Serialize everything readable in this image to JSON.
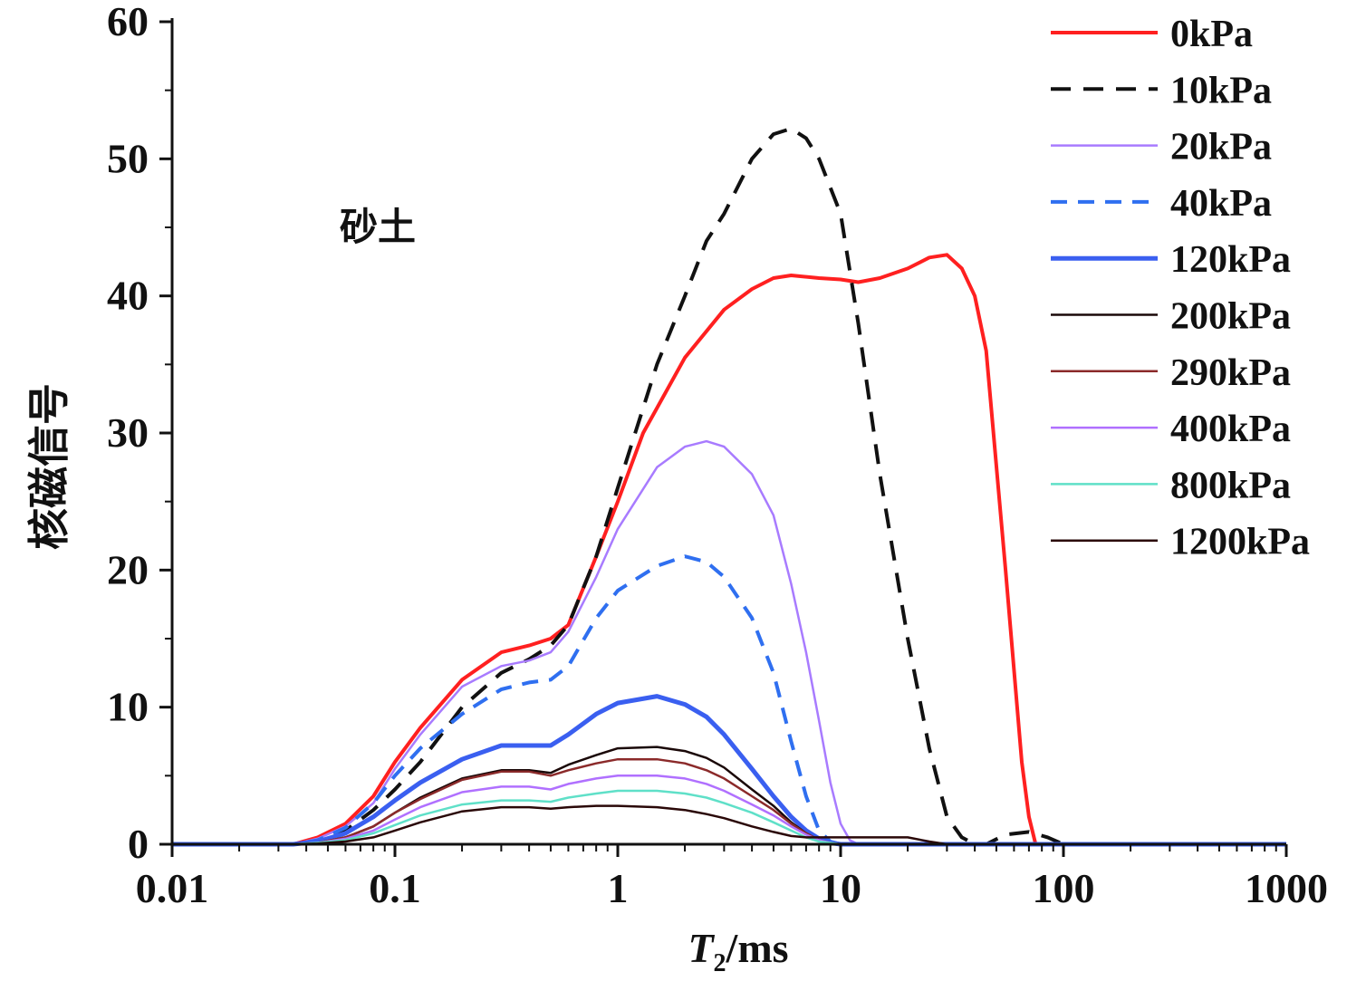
{
  "chart_data": {
    "type": "line",
    "xscale": "log",
    "xlabel_main": "T",
    "xlabel_sub": "2",
    "xlabel_unit": "/ms",
    "ylabel": "核磁信号",
    "annotation": "砂土",
    "xlim": [
      0.01,
      1000
    ],
    "ylim": [
      0,
      60
    ],
    "xticks": [
      0.01,
      0.1,
      1,
      10,
      100,
      1000
    ],
    "xtick_labels": [
      "0.01",
      "0.1",
      "1",
      "10",
      "100",
      "1000"
    ],
    "yticks": [
      0,
      10,
      20,
      30,
      40,
      50,
      60
    ],
    "ytick_labels": [
      "0",
      "10",
      "20",
      "30",
      "40",
      "50",
      "60"
    ],
    "grid": false,
    "legend_position": "top-right",
    "series": [
      {
        "name": "0kPa",
        "color": "#ff2020",
        "dash": "solid",
        "width": 4,
        "x": [
          0.01,
          0.035,
          0.045,
          0.06,
          0.08,
          0.1,
          0.13,
          0.2,
          0.3,
          0.4,
          0.5,
          0.6,
          0.8,
          1,
          1.3,
          2,
          3,
          4,
          5,
          6,
          8,
          10,
          12,
          15,
          20,
          25,
          30,
          35,
          40,
          45,
          55,
          65,
          70,
          75,
          80,
          1000
        ],
        "y": [
          0,
          0,
          0.5,
          1.5,
          3.5,
          6,
          8.5,
          12,
          14,
          14.5,
          15,
          16,
          21,
          25,
          30,
          35.5,
          39,
          40.5,
          41.3,
          41.5,
          41.3,
          41.2,
          41,
          41.3,
          42,
          42.8,
          43,
          42,
          40,
          36,
          20,
          6,
          2,
          0,
          0,
          0
        ]
      },
      {
        "name": "10kPa",
        "color": "#111111",
        "dash": "22,14",
        "width": 4,
        "x": [
          0.01,
          0.035,
          0.045,
          0.06,
          0.08,
          0.1,
          0.13,
          0.2,
          0.3,
          0.4,
          0.5,
          0.6,
          0.8,
          1,
          1.5,
          2,
          2.5,
          3,
          4,
          5,
          6,
          7,
          8,
          10,
          12,
          15,
          20,
          25,
          30,
          35,
          40,
          45,
          55,
          70,
          85,
          100,
          1000
        ],
        "y": [
          0,
          0,
          0.3,
          1,
          2.5,
          4,
          6,
          10,
          12.5,
          13.5,
          14.5,
          16,
          21,
          26,
          35,
          40,
          44,
          46,
          50,
          51.8,
          52.2,
          51.5,
          50,
          46,
          38,
          27,
          15,
          7,
          2,
          0.5,
          0,
          0,
          0.7,
          0.9,
          0.5,
          0,
          0
        ]
      },
      {
        "name": "20kPa",
        "color": "#a87bff",
        "dash": "solid",
        "width": 2.5,
        "x": [
          0.01,
          0.035,
          0.045,
          0.06,
          0.08,
          0.1,
          0.13,
          0.2,
          0.3,
          0.4,
          0.5,
          0.6,
          0.8,
          1,
          1.5,
          2,
          2.5,
          3,
          4,
          5,
          6,
          7,
          8,
          9,
          10,
          11,
          12,
          1000
        ],
        "y": [
          0,
          0,
          0.4,
          1.3,
          3,
          5.5,
          8,
          11.5,
          13,
          13.4,
          14,
          15.5,
          19.5,
          23,
          27.5,
          29,
          29.4,
          29,
          27,
          24,
          19,
          14,
          9,
          4.5,
          1.5,
          0.3,
          0,
          0
        ]
      },
      {
        "name": "40kPa",
        "color": "#2f6ff0",
        "dash": "18,12",
        "width": 4,
        "x": [
          0.01,
          0.035,
          0.045,
          0.06,
          0.08,
          0.1,
          0.13,
          0.2,
          0.3,
          0.4,
          0.5,
          0.6,
          0.8,
          1,
          1.5,
          2,
          2.5,
          3,
          4,
          5,
          6,
          7,
          8,
          9,
          10,
          1000
        ],
        "y": [
          0,
          0,
          0.3,
          1.2,
          3,
          5,
          7,
          9.5,
          11.3,
          11.8,
          12,
          13,
          16.5,
          18.5,
          20.3,
          21,
          20.6,
          19.5,
          16.5,
          12.5,
          7.5,
          3.5,
          1,
          0.2,
          0,
          0
        ]
      },
      {
        "name": "120kPa",
        "color": "#3a5ff0",
        "dash": "solid",
        "width": 5,
        "x": [
          0.01,
          0.035,
          0.045,
          0.06,
          0.08,
          0.1,
          0.13,
          0.2,
          0.3,
          0.4,
          0.5,
          0.6,
          0.8,
          1,
          1.5,
          2,
          2.5,
          3,
          4,
          5,
          6,
          7,
          8,
          9,
          10,
          1000
        ],
        "y": [
          0,
          0,
          0.2,
          0.8,
          2,
          3.2,
          4.5,
          6.2,
          7.2,
          7.2,
          7.2,
          8,
          9.5,
          10.3,
          10.8,
          10.2,
          9.3,
          8,
          5.5,
          3.5,
          2,
          1,
          0.4,
          0.1,
          0,
          0
        ]
      },
      {
        "name": "200kPa",
        "color": "#1a0808",
        "dash": "solid",
        "width": 2.5,
        "x": [
          0.01,
          0.035,
          0.045,
          0.06,
          0.08,
          0.1,
          0.13,
          0.2,
          0.3,
          0.4,
          0.5,
          0.6,
          0.8,
          1,
          1.5,
          2,
          2.5,
          3,
          4,
          5,
          6,
          7,
          8,
          9,
          10,
          1000
        ],
        "y": [
          0,
          0,
          0.1,
          0.5,
          1.3,
          2.3,
          3.4,
          4.8,
          5.4,
          5.4,
          5.2,
          5.8,
          6.5,
          7,
          7.1,
          6.8,
          6.3,
          5.6,
          4,
          2.8,
          1.6,
          0.8,
          0.3,
          0.1,
          0,
          0
        ]
      },
      {
        "name": "290kPa",
        "color": "#8b2a2a",
        "dash": "solid",
        "width": 2.5,
        "x": [
          0.01,
          0.035,
          0.045,
          0.06,
          0.08,
          0.1,
          0.13,
          0.2,
          0.3,
          0.4,
          0.5,
          0.6,
          0.8,
          1,
          1.5,
          2,
          2.5,
          3,
          4,
          5,
          6,
          7,
          8,
          9,
          10,
          1000
        ],
        "y": [
          0,
          0,
          0.1,
          0.5,
          1.3,
          2.3,
          3.3,
          4.7,
          5.3,
          5.3,
          5,
          5.4,
          5.9,
          6.2,
          6.2,
          5.9,
          5.4,
          4.8,
          3.5,
          2.5,
          1.5,
          0.8,
          0.3,
          0.1,
          0,
          0
        ]
      },
      {
        "name": "400kPa",
        "color": "#b070ff",
        "dash": "solid",
        "width": 2.5,
        "x": [
          0.01,
          0.035,
          0.045,
          0.06,
          0.08,
          0.1,
          0.13,
          0.2,
          0.3,
          0.4,
          0.5,
          0.6,
          0.8,
          1,
          1.5,
          2,
          2.5,
          3,
          4,
          5,
          6,
          7,
          8,
          9,
          10,
          1000
        ],
        "y": [
          0,
          0,
          0.1,
          0.4,
          1,
          1.8,
          2.7,
          3.8,
          4.2,
          4.2,
          4,
          4.4,
          4.8,
          5,
          5,
          4.8,
          4.4,
          3.9,
          2.9,
          2.1,
          1.3,
          0.7,
          0.3,
          0.1,
          0,
          0
        ]
      },
      {
        "name": "800kPa",
        "color": "#5fe0c8",
        "dash": "solid",
        "width": 2.5,
        "x": [
          0.01,
          0.035,
          0.045,
          0.06,
          0.08,
          0.1,
          0.13,
          0.2,
          0.3,
          0.4,
          0.5,
          0.6,
          0.8,
          1,
          1.5,
          2,
          2.5,
          3,
          4,
          5,
          6,
          7,
          8,
          9,
          10,
          1000
        ],
        "y": [
          0,
          0,
          0.1,
          0.3,
          0.8,
          1.4,
          2.1,
          2.9,
          3.2,
          3.2,
          3.1,
          3.4,
          3.7,
          3.9,
          3.9,
          3.7,
          3.4,
          3,
          2.3,
          1.6,
          1,
          0.5,
          0.2,
          0.1,
          0,
          0
        ]
      },
      {
        "name": "1200kPa",
        "color": "#2a0808",
        "dash": "solid",
        "width": 2.5,
        "x": [
          0.01,
          0.035,
          0.045,
          0.06,
          0.08,
          0.1,
          0.13,
          0.2,
          0.3,
          0.4,
          0.5,
          0.6,
          0.8,
          1,
          1.5,
          2,
          2.5,
          3,
          4,
          5,
          6,
          7,
          8,
          9,
          10,
          15,
          20,
          25,
          30,
          1000
        ],
        "y": [
          0,
          0,
          0.05,
          0.2,
          0.5,
          1,
          1.6,
          2.4,
          2.7,
          2.7,
          2.6,
          2.7,
          2.8,
          2.8,
          2.7,
          2.5,
          2.2,
          1.9,
          1.3,
          0.9,
          0.6,
          0.5,
          0.5,
          0.5,
          0.5,
          0.5,
          0.5,
          0.2,
          0,
          0
        ]
      }
    ]
  }
}
